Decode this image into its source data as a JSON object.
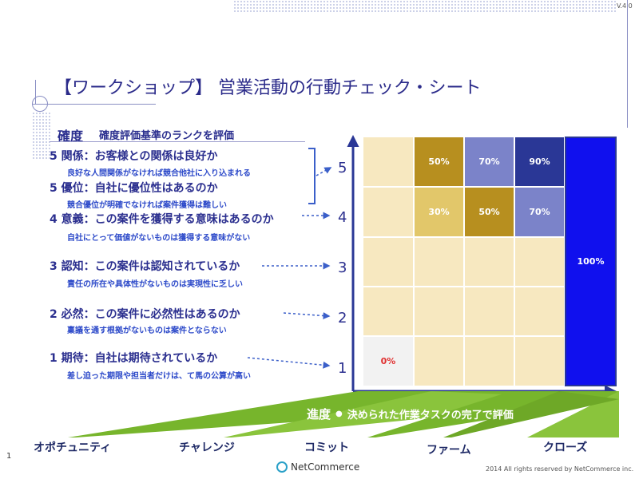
{
  "version": "V.4.0",
  "title": "【ワークショップ】 営業活動の行動チェック・シート",
  "kakudo": {
    "label": "確度",
    "subtitle": "確度評価基準のランクを評価"
  },
  "criteria": [
    {
      "title": "5 関係：お客様との関係は良好か",
      "note": "良好な人間関係がなければ競合他社に入り込まれる"
    },
    {
      "title": "5 優位：自社に優位性はあるのか",
      "note": "競合優位が明確でなければ案件獲得は難しい"
    },
    {
      "title": "4 意義：この案件を獲得する意味はあるのか",
      "note": "自社にとって価値がないものは獲得する意味がない"
    },
    {
      "title": "3 認知：この案件は認知されているか",
      "note": "責任の所在や具体性がないものは実現性に乏しい"
    },
    {
      "title": "2 必然：この案件に必然性はあるのか",
      "note": "稟議を通す根拠がないものは案件とならない"
    },
    {
      "title": "1 期待：自社は期待されているか",
      "note": "差し迫った期限や担当者だけは、て馬の公算が高い"
    }
  ],
  "levels": [
    "5",
    "4",
    "3",
    "2",
    "1"
  ],
  "grid": {
    "row5": [
      "50%",
      "70%",
      "90%"
    ],
    "row4": [
      "30%",
      "50%",
      "70%"
    ],
    "bottom_left": "0%",
    "close_column": "100%"
  },
  "progress": {
    "label": "進度",
    "subtitle": "決められた作業タスクの完了で評価"
  },
  "phases": [
    "オポチュニティ",
    "チャレンジ",
    "コミット",
    "ファーム",
    "クローズ"
  ],
  "page_number": "1",
  "logo_text": "NetCommerce",
  "copyright": "2014 All rights reserved by NetCommerce inc.",
  "colors": {
    "cream": "#f7e8c0",
    "gold_light": "#e2c76a",
    "gold": "#b78f1f",
    "periwinkle": "#7b83c9",
    "navy": "#2a3796",
    "blue": "#1010ee",
    "green": "#7ab62e"
  }
}
